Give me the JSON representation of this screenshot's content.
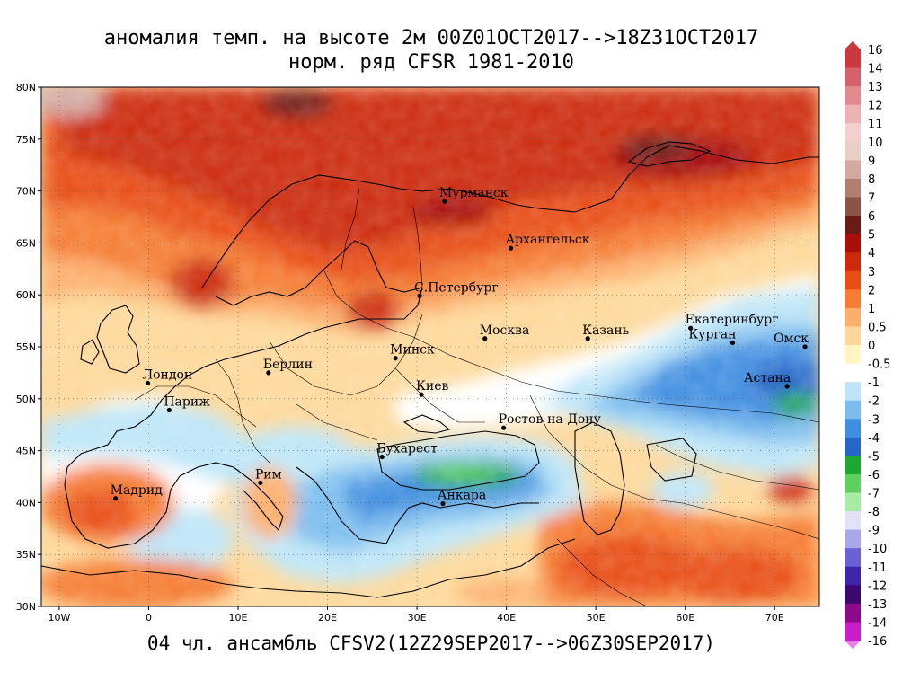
{
  "title_line1": "аномалия темп. на высоте 2м 00Z01OCT2017-->18Z31OCT2017",
  "title_line2": "норм. ряд CFSR 1981-2010",
  "subtitle": "04 чл. ансамбль CFSV2(12Z29SEP2017-->06Z30SEP2017)",
  "map": {
    "lon_range": [
      -12,
      75
    ],
    "lat_range": [
      30,
      80
    ],
    "lat_ticks": [
      "30N",
      "35N",
      "40N",
      "45N",
      "50N",
      "55N",
      "60N",
      "65N",
      "70N",
      "75N",
      "80N"
    ],
    "lon_ticks": [
      "10W",
      "0",
      "10E",
      "20E",
      "30E",
      "40E",
      "50E",
      "60E",
      "70E"
    ],
    "grid": "dotted"
  },
  "cities": [
    {
      "name": "Мурманск",
      "lon": 33.1,
      "lat": 69.0
    },
    {
      "name": "Архангельск",
      "lon": 40.5,
      "lat": 64.5
    },
    {
      "name": "С.Петербург",
      "lon": 30.3,
      "lat": 59.9
    },
    {
      "name": "Москва",
      "lon": 37.6,
      "lat": 55.8
    },
    {
      "name": "Казань",
      "lon": 49.1,
      "lat": 55.8
    },
    {
      "name": "Екатеринбург",
      "lon": 60.6,
      "lat": 56.8
    },
    {
      "name": "Курган",
      "lon": 65.3,
      "lat": 55.4
    },
    {
      "name": "Омск",
      "lon": 73.4,
      "lat": 55.0
    },
    {
      "name": "Астана",
      "lon": 71.4,
      "lat": 51.2
    },
    {
      "name": "Минск",
      "lon": 27.6,
      "lat": 53.9
    },
    {
      "name": "Берлин",
      "lon": 13.4,
      "lat": 52.5
    },
    {
      "name": "Лондон",
      "lon": -0.1,
      "lat": 51.5
    },
    {
      "name": "Париж",
      "lon": 2.3,
      "lat": 48.9
    },
    {
      "name": "Киев",
      "lon": 30.5,
      "lat": 50.4
    },
    {
      "name": "Ростов-на-Дону",
      "lon": 39.7,
      "lat": 47.2
    },
    {
      "name": "Бухарест",
      "lon": 26.1,
      "lat": 44.4
    },
    {
      "name": "Рим",
      "lon": 12.5,
      "lat": 41.9
    },
    {
      "name": "Мадрид",
      "lon": -3.7,
      "lat": 40.4
    },
    {
      "name": "Анкара",
      "lon": 32.9,
      "lat": 39.9
    }
  ],
  "legend": [
    {
      "label": "16",
      "color": "#c8393f"
    },
    {
      "label": "14",
      "color": "#d4626a"
    },
    {
      "label": "13",
      "color": "#e08a8f"
    },
    {
      "label": "12",
      "color": "#ecb3b5"
    },
    {
      "label": "11",
      "color": "#f2d0d0"
    },
    {
      "label": "10",
      "color": "#e8cfc8"
    },
    {
      "label": "9",
      "color": "#d1a9a0"
    },
    {
      "label": "8",
      "color": "#b07e72"
    },
    {
      "label": "7",
      "color": "#8c5449"
    },
    {
      "label": "6",
      "color": "#6b1b16"
    },
    {
      "label": "5",
      "color": "#a80f0a"
    },
    {
      "label": "4",
      "color": "#cc2a0b"
    },
    {
      "label": "3",
      "color": "#e84d13"
    },
    {
      "label": "2",
      "color": "#f57c33"
    },
    {
      "label": "1",
      "color": "#fcae6b"
    },
    {
      "label": "0.5",
      "color": "#fdd89a"
    },
    {
      "label": "0",
      "color": "#fff6c4"
    },
    {
      "label": "-0.5",
      "color": "#ffffff"
    },
    {
      "label": "-1",
      "color": "#bde5f7"
    },
    {
      "label": "-2",
      "color": "#7cbdee"
    },
    {
      "label": "-3",
      "color": "#3f8ee0"
    },
    {
      "label": "-4",
      "color": "#2566c8"
    },
    {
      "label": "-5",
      "color": "#1ea832"
    },
    {
      "label": "-6",
      "color": "#5dd05d"
    },
    {
      "label": "-7",
      "color": "#a8eba2"
    },
    {
      "label": "-8",
      "color": "#e2e2f7"
    },
    {
      "label": "-9",
      "color": "#a8a8e8"
    },
    {
      "label": "-10",
      "color": "#6a62d4"
    },
    {
      "label": "-11",
      "color": "#3f26a8"
    },
    {
      "label": "-12",
      "color": "#3a0a70"
    },
    {
      "label": "-13",
      "color": "#8a0a8a"
    },
    {
      "label": "-14",
      "color": "#c81ec8"
    },
    {
      "label": "-16",
      "color": "#f07af0"
    }
  ]
}
